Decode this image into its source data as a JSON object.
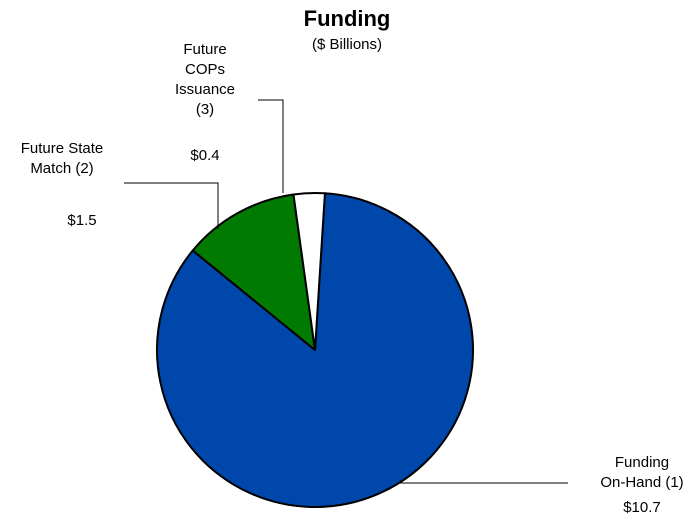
{
  "chart_data": {
    "type": "pie",
    "title": "Funding",
    "subtitle": "($ Billions)",
    "slices": [
      {
        "label_lines": [
          "Funding",
          "On-Hand (1)"
        ],
        "value": 10.7,
        "value_label": "$10.7",
        "color": "#0047AB"
      },
      {
        "label_lines": [
          "Future State",
          "Match (2)"
        ],
        "value": 1.5,
        "value_label": "$1.5",
        "color": "#007A00"
      },
      {
        "label_lines": [
          "Future",
          "COPs",
          "Issuance",
          "(3)"
        ],
        "value": 0.4,
        "value_label": "$0.4",
        "color": "#FFFFFF"
      }
    ],
    "legend": "none",
    "grid": false
  }
}
